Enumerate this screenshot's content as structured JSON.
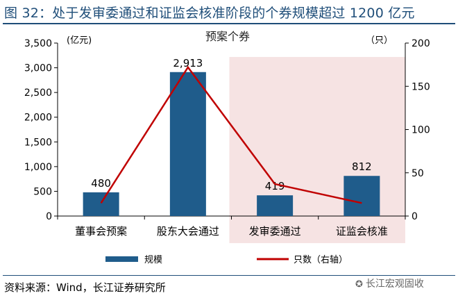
{
  "header": {
    "title": "图 32：处于发审委通过和证监会核准阶段的个券规模超过 1200 亿元"
  },
  "footer": {
    "source": "资料来源：Wind，长江证券研究所",
    "watermark": "长江宏观固收"
  },
  "chart_data": {
    "type": "bar",
    "title": "预案个券",
    "categories": [
      "董事会预案",
      "股东大会通过",
      "发审委通过",
      "证监会核准"
    ],
    "series": [
      {
        "name": "规模",
        "type": "bar",
        "axis": "left",
        "values": [
          480,
          2913,
          419,
          812
        ],
        "color": "#1f5c8b"
      },
      {
        "name": "只数（右轴）",
        "type": "line",
        "axis": "right",
        "values": [
          15,
          172,
          37,
          15
        ],
        "color": "#c00000"
      }
    ],
    "data_labels": [
      "480",
      "2,913",
      "419",
      "812"
    ],
    "y_left": {
      "unit_label": "(亿元)",
      "ylim": [
        0,
        3500
      ],
      "ticks": [
        "0",
        "500",
        "1,000",
        "1,500",
        "2,000",
        "2,500",
        "3,000",
        "3,500"
      ]
    },
    "y_right": {
      "unit_label": "（只）",
      "ylim": [
        0,
        200
      ],
      "ticks": [
        "0",
        "50",
        "100",
        "150",
        "200"
      ]
    },
    "highlight": {
      "from_category": "发审委通过",
      "to_category": "证监会核准",
      "color": "#f6e3e3"
    },
    "grid": false,
    "legend_position": "bottom"
  }
}
